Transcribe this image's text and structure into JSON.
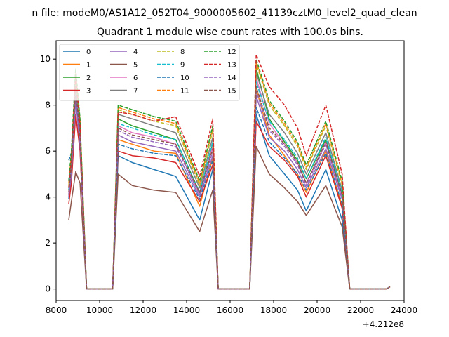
{
  "figure": {
    "suptitle": "n file: modeM0/AS1A12_052T04_9000005602_41139cztM0_level2_quad_clean",
    "offset_text": "+4.212e8"
  },
  "chart_data": {
    "type": "line",
    "title": "Quadrant 1 module wise count rates with 100.0s bins.",
    "xlabel": "",
    "ylabel": "",
    "x_offset": 421200000,
    "xlim": [
      8000,
      24000
    ],
    "ylim": [
      -0.5,
      10.8
    ],
    "xticks": [
      8000,
      10000,
      12000,
      14000,
      16000,
      18000,
      20000,
      22000,
      24000
    ],
    "xtick_labels": [
      "8000",
      "10000",
      "12000",
      "14000",
      "16000",
      "18000",
      "20000",
      "22000",
      "24000"
    ],
    "yticks": [
      0,
      2,
      4,
      6,
      8,
      10
    ],
    "ytick_labels": [
      "0",
      "2",
      "4",
      "6",
      "8",
      "10"
    ],
    "grid": false,
    "legend_position": "top-left",
    "legend_columns": 4,
    "series": [
      {
        "name": "0",
        "color": "#1f77b4",
        "dash": "solid",
        "values": [
          3.9,
          5.0,
          8.5,
          6.1,
          0.0,
          0.0,
          5.8,
          5.5,
          5.2,
          4.9,
          3.0,
          5.2,
          0.0,
          0.0,
          7.6,
          5.8,
          5.0,
          4.3,
          3.4,
          5.2,
          3.0,
          0.0,
          0.0,
          0.0,
          0.1
        ]
      },
      {
        "name": "1",
        "color": "#ff7f0e",
        "dash": "solid",
        "values": [
          4.1,
          5.3,
          8.8,
          6.5,
          0.0,
          0.0,
          6.5,
          6.3,
          6.0,
          5.9,
          3.6,
          5.7,
          0.0,
          0.0,
          8.7,
          6.7,
          5.8,
          5.0,
          4.2,
          6.0,
          3.6,
          0.0,
          0.0,
          0.0,
          0.1
        ]
      },
      {
        "name": "2",
        "color": "#2ca02c",
        "dash": "solid",
        "values": [
          4.4,
          5.6,
          9.0,
          7.0,
          0.0,
          0.0,
          7.4,
          7.1,
          6.8,
          6.5,
          4.2,
          6.3,
          0.0,
          0.0,
          9.6,
          7.4,
          6.4,
          5.6,
          4.8,
          6.5,
          4.1,
          0.0,
          0.0,
          0.0,
          0.1
        ]
      },
      {
        "name": "3",
        "color": "#d62728",
        "dash": "solid",
        "values": [
          3.7,
          4.6,
          7.6,
          6.0,
          0.0,
          0.0,
          6.0,
          5.8,
          5.7,
          5.5,
          3.8,
          5.4,
          0.0,
          0.0,
          7.3,
          6.2,
          5.6,
          4.9,
          4.0,
          5.8,
          3.5,
          0.0,
          0.0,
          0.0,
          0.1
        ]
      },
      {
        "name": "4",
        "color": "#9467bd",
        "dash": "solid",
        "values": [
          4.0,
          5.0,
          8.2,
          6.3,
          0.0,
          0.0,
          6.7,
          6.4,
          6.2,
          6.0,
          4.0,
          5.8,
          0.0,
          0.0,
          8.4,
          6.6,
          6.0,
          5.2,
          4.4,
          6.1,
          3.9,
          0.0,
          0.0,
          0.0,
          0.1
        ]
      },
      {
        "name": "5",
        "color": "#8c564b",
        "dash": "solid",
        "values": [
          3.0,
          3.8,
          5.1,
          4.6,
          0.0,
          0.0,
          5.0,
          4.5,
          4.3,
          4.2,
          2.5,
          4.3,
          0.0,
          0.0,
          6.2,
          5.0,
          4.4,
          3.8,
          3.2,
          4.5,
          2.7,
          0.0,
          0.0,
          0.0,
          0.1
        ]
      },
      {
        "name": "6",
        "color": "#e377c2",
        "dash": "solid",
        "values": [
          4.2,
          5.4,
          9.0,
          6.7,
          0.0,
          0.0,
          7.1,
          6.8,
          6.6,
          6.3,
          4.1,
          6.2,
          0.0,
          0.0,
          9.2,
          7.2,
          6.3,
          5.5,
          4.6,
          6.4,
          4.0,
          0.0,
          0.0,
          0.0,
          0.1
        ]
      },
      {
        "name": "7",
        "color": "#7f7f7f",
        "dash": "solid",
        "values": [
          4.3,
          5.5,
          8.9,
          6.8,
          0.0,
          0.0,
          7.6,
          7.4,
          7.1,
          6.8,
          4.4,
          6.6,
          0.0,
          0.0,
          9.4,
          7.6,
          6.8,
          5.9,
          5.0,
          6.8,
          4.3,
          0.0,
          0.0,
          0.0,
          0.1
        ]
      },
      {
        "name": "8",
        "color": "#bcbd22",
        "dash": "dashed",
        "values": [
          4.5,
          5.7,
          9.2,
          7.2,
          0.0,
          0.0,
          7.8,
          7.6,
          7.3,
          7.1,
          4.5,
          6.9,
          0.0,
          0.0,
          9.8,
          8.0,
          7.1,
          6.2,
          5.2,
          7.1,
          4.5,
          0.0,
          0.0,
          0.0,
          0.1
        ]
      },
      {
        "name": "9",
        "color": "#17becf",
        "dash": "dashed",
        "values": [
          4.3,
          5.4,
          8.7,
          6.8,
          0.0,
          0.0,
          7.2,
          7.0,
          6.7,
          6.5,
          4.2,
          6.4,
          0.0,
          0.0,
          9.0,
          7.3,
          6.5,
          5.7,
          4.8,
          6.6,
          4.2,
          0.0,
          0.0,
          0.0,
          0.1
        ]
      },
      {
        "name": "10",
        "color": "#1f77b4",
        "dash": "dashed",
        "values": [
          5.6,
          5.9,
          8.5,
          6.6,
          0.0,
          0.0,
          6.3,
          6.1,
          5.9,
          5.8,
          3.9,
          5.6,
          0.0,
          0.0,
          7.9,
          6.4,
          5.7,
          5.0,
          4.3,
          5.9,
          3.7,
          0.0,
          0.0,
          0.0,
          0.1
        ]
      },
      {
        "name": "11",
        "color": "#ff7f0e",
        "dash": "dashed",
        "values": [
          4.6,
          5.8,
          9.4,
          7.3,
          0.0,
          0.0,
          7.9,
          7.7,
          7.4,
          7.2,
          4.6,
          7.0,
          0.0,
          0.0,
          9.9,
          8.1,
          7.2,
          6.3,
          5.3,
          7.2,
          4.6,
          0.0,
          0.0,
          0.0,
          0.1
        ]
      },
      {
        "name": "12",
        "color": "#2ca02c",
        "dash": "dashed",
        "values": [
          4.7,
          6.0,
          9.6,
          7.4,
          0.0,
          0.0,
          8.0,
          7.8,
          7.5,
          7.3,
          4.7,
          7.1,
          0.0,
          0.0,
          10.0,
          8.2,
          7.3,
          6.4,
          5.4,
          7.3,
          4.7,
          0.0,
          0.0,
          0.0,
          0.1
        ]
      },
      {
        "name": "13",
        "color": "#d62728",
        "dash": "dashed",
        "values": [
          4.4,
          5.6,
          9.3,
          7.1,
          0.0,
          0.0,
          7.7,
          7.6,
          7.3,
          7.5,
          4.9,
          7.4,
          0.0,
          0.0,
          10.2,
          8.8,
          8.0,
          7.0,
          5.8,
          8.0,
          5.0,
          0.0,
          0.0,
          0.0,
          0.1
        ]
      },
      {
        "name": "14",
        "color": "#9467bd",
        "dash": "dashed",
        "values": [
          4.1,
          5.2,
          8.6,
          6.5,
          0.0,
          0.0,
          6.9,
          6.6,
          6.4,
          6.2,
          4.1,
          6.0,
          0.0,
          0.0,
          8.6,
          6.9,
          6.2,
          5.4,
          4.5,
          6.3,
          4.0,
          0.0,
          0.0,
          0.0,
          0.1
        ]
      },
      {
        "name": "15",
        "color": "#8c564b",
        "dash": "dashed",
        "values": [
          4.2,
          5.3,
          8.8,
          6.6,
          0.0,
          0.0,
          7.0,
          6.7,
          6.5,
          6.3,
          4.2,
          6.1,
          0.0,
          0.0,
          8.8,
          7.0,
          6.3,
          5.5,
          4.6,
          6.4,
          4.1,
          0.0,
          0.0,
          0.0,
          0.1
        ]
      }
    ],
    "x": [
      8580,
      8700,
      8900,
      9100,
      9400,
      10600,
      10850,
      11500,
      12500,
      13500,
      14600,
      15200,
      15450,
      16900,
      17200,
      17800,
      18500,
      19100,
      19500,
      20400,
      21150,
      21500,
      22500,
      23200,
      23350
    ],
    "extra_marks": {
      "value_range_hint": "series values sampled at the x positions above"
    }
  }
}
